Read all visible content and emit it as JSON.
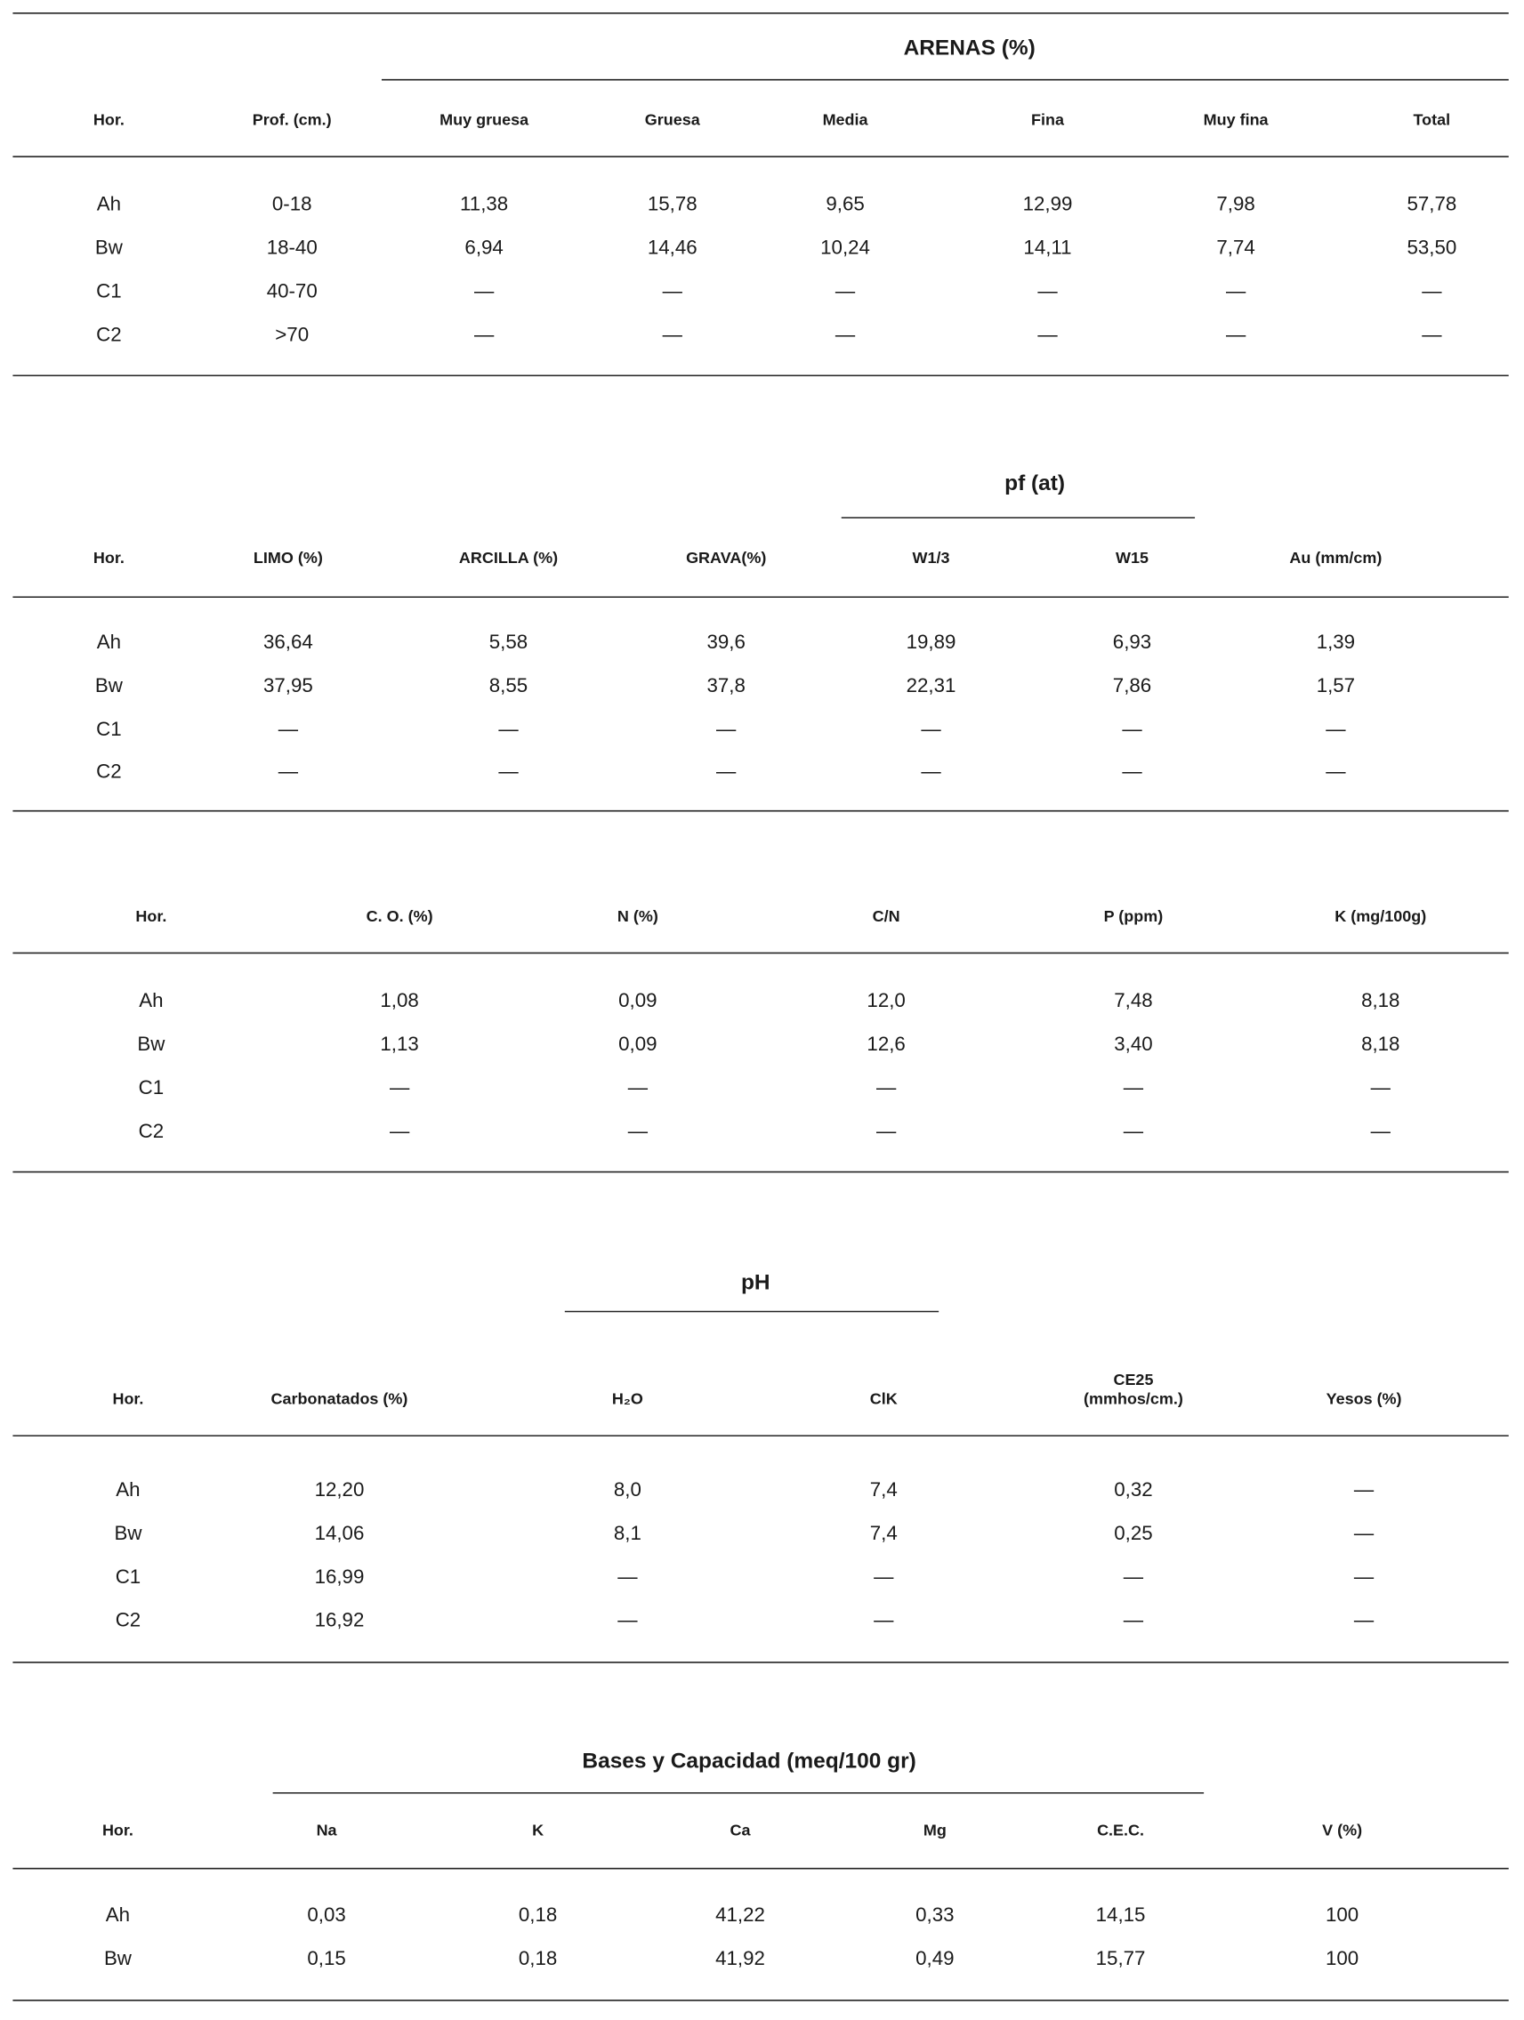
{
  "tables": [
    {
      "group_header": "ARENAS (%)",
      "headers": [
        "Hor.",
        "Prof. (cm.)",
        "Muy gruesa",
        "Gruesa",
        "Media",
        "Fina",
        "Muy fina",
        "Total"
      ],
      "rows": [
        [
          "Ah",
          "0-18",
          "11,38",
          "15,78",
          "9,65",
          "12,99",
          "7,98",
          "57,78"
        ],
        [
          "Bw",
          "18-40",
          "6,94",
          "14,46",
          "10,24",
          "14,11",
          "7,74",
          "53,50"
        ],
        [
          "C1",
          "40-70",
          "—",
          "—",
          "—",
          "—",
          "—",
          "—"
        ],
        [
          "C2",
          ">70",
          "—",
          "—",
          "—",
          "—",
          "—",
          "—"
        ]
      ]
    },
    {
      "group_header": "pf (at)",
      "headers": [
        "Hor.",
        "LIMO (%)",
        "ARCILLA (%)",
        "GRAVA(%)",
        "W1/3",
        "W15",
        "Au (mm/cm)"
      ],
      "rows": [
        [
          "Ah",
          "36,64",
          "5,58",
          "39,6",
          "19,89",
          "6,93",
          "1,39"
        ],
        [
          "Bw",
          "37,95",
          "8,55",
          "37,8",
          "22,31",
          "7,86",
          "1,57"
        ],
        [
          "C1",
          "—",
          "—",
          "—",
          "—",
          "—",
          "—"
        ],
        [
          "C2",
          "—",
          "—",
          "—",
          "—",
          "—",
          "—"
        ]
      ]
    },
    {
      "headers": [
        "Hor.",
        "C. O. (%)",
        "N (%)",
        "C/N",
        "P (ppm)",
        "K (mg/100g)"
      ],
      "rows": [
        [
          "Ah",
          "1,08",
          "0,09",
          "12,0",
          "7,48",
          "8,18"
        ],
        [
          "Bw",
          "1,13",
          "0,09",
          "12,6",
          "3,40",
          "8,18"
        ],
        [
          "C1",
          "—",
          "—",
          "—",
          "—",
          "—"
        ],
        [
          "C2",
          "—",
          "—",
          "—",
          "—",
          "—"
        ]
      ]
    },
    {
      "group_header": "pH",
      "headers": [
        "Hor.",
        "Carbonatados (%)",
        "H₂O",
        "ClK",
        [
          "CE25",
          "(mmhos/cm.)"
        ],
        "Yesos (%)"
      ],
      "rows": [
        [
          "Ah",
          "12,20",
          "8,0",
          "7,4",
          "0,32",
          "—"
        ],
        [
          "Bw",
          "14,06",
          "8,1",
          "7,4",
          "0,25",
          "—"
        ],
        [
          "C1",
          "16,99",
          "—",
          "—",
          "—",
          "—"
        ],
        [
          "C2",
          "16,92",
          "—",
          "—",
          "—",
          "—"
        ]
      ]
    },
    {
      "group_header": "Bases y Capacidad (meq/100 gr)",
      "headers": [
        "Hor.",
        "Na",
        "K",
        "Ca",
        "Mg",
        "C.E.C.",
        "V (%)"
      ],
      "rows": [
        [
          "Ah",
          "0,03",
          "0,18",
          "41,22",
          "0,33",
          "14,15",
          "100"
        ],
        [
          "Bw",
          "0,15",
          "0,18",
          "41,92",
          "0,49",
          "15,77",
          "100"
        ]
      ]
    }
  ]
}
